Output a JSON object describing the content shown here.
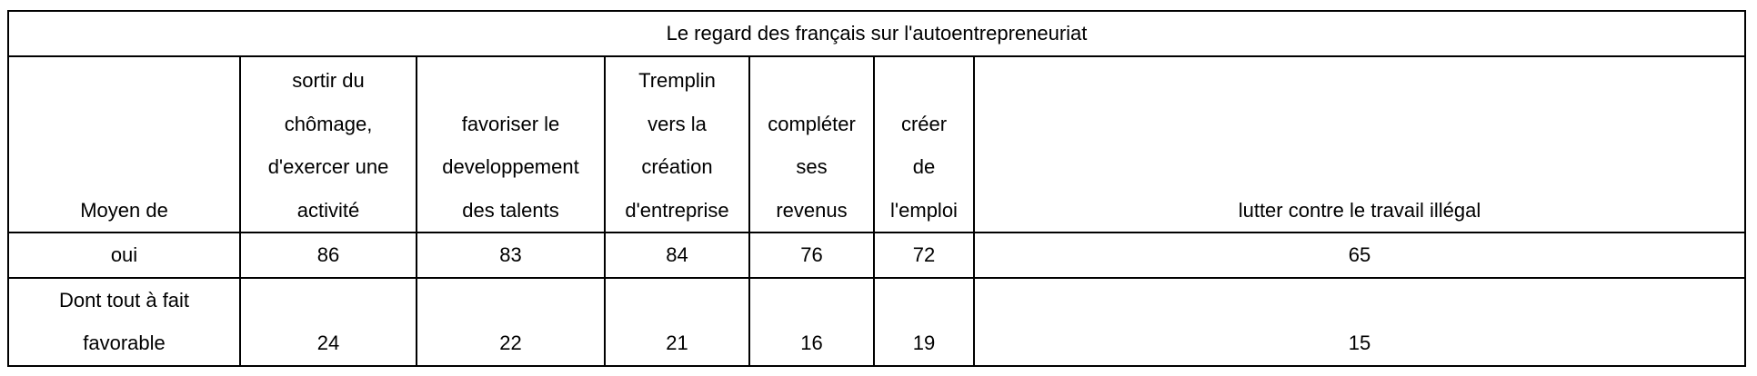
{
  "table": {
    "title": "Le regard des français sur l'autoentrepreneuriat",
    "row_header_label": "Moyen de",
    "columns": [
      {
        "lines": [
          "sortir du",
          "chômage,",
          "d'exercer une",
          "activité"
        ]
      },
      {
        "lines": [
          "favoriser le",
          "developpement",
          "des talents"
        ]
      },
      {
        "lines": [
          "Tremplin",
          "vers la",
          "création",
          "d'entreprise"
        ]
      },
      {
        "lines": [
          "compléter",
          "ses",
          "revenus"
        ]
      },
      {
        "lines": [
          "créer",
          "de",
          "l'emploi"
        ]
      },
      {
        "lines": [
          "lutter contre le travail illégal"
        ]
      }
    ],
    "rows": [
      {
        "label_lines": [
          "oui"
        ],
        "values": [
          "86",
          "83",
          "84",
          "76",
          "72",
          "65"
        ]
      },
      {
        "label_lines": [
          "Dont tout à fait",
          "favorable"
        ],
        "values": [
          "24",
          "22",
          "21",
          "16",
          "19",
          "15"
        ]
      }
    ]
  }
}
